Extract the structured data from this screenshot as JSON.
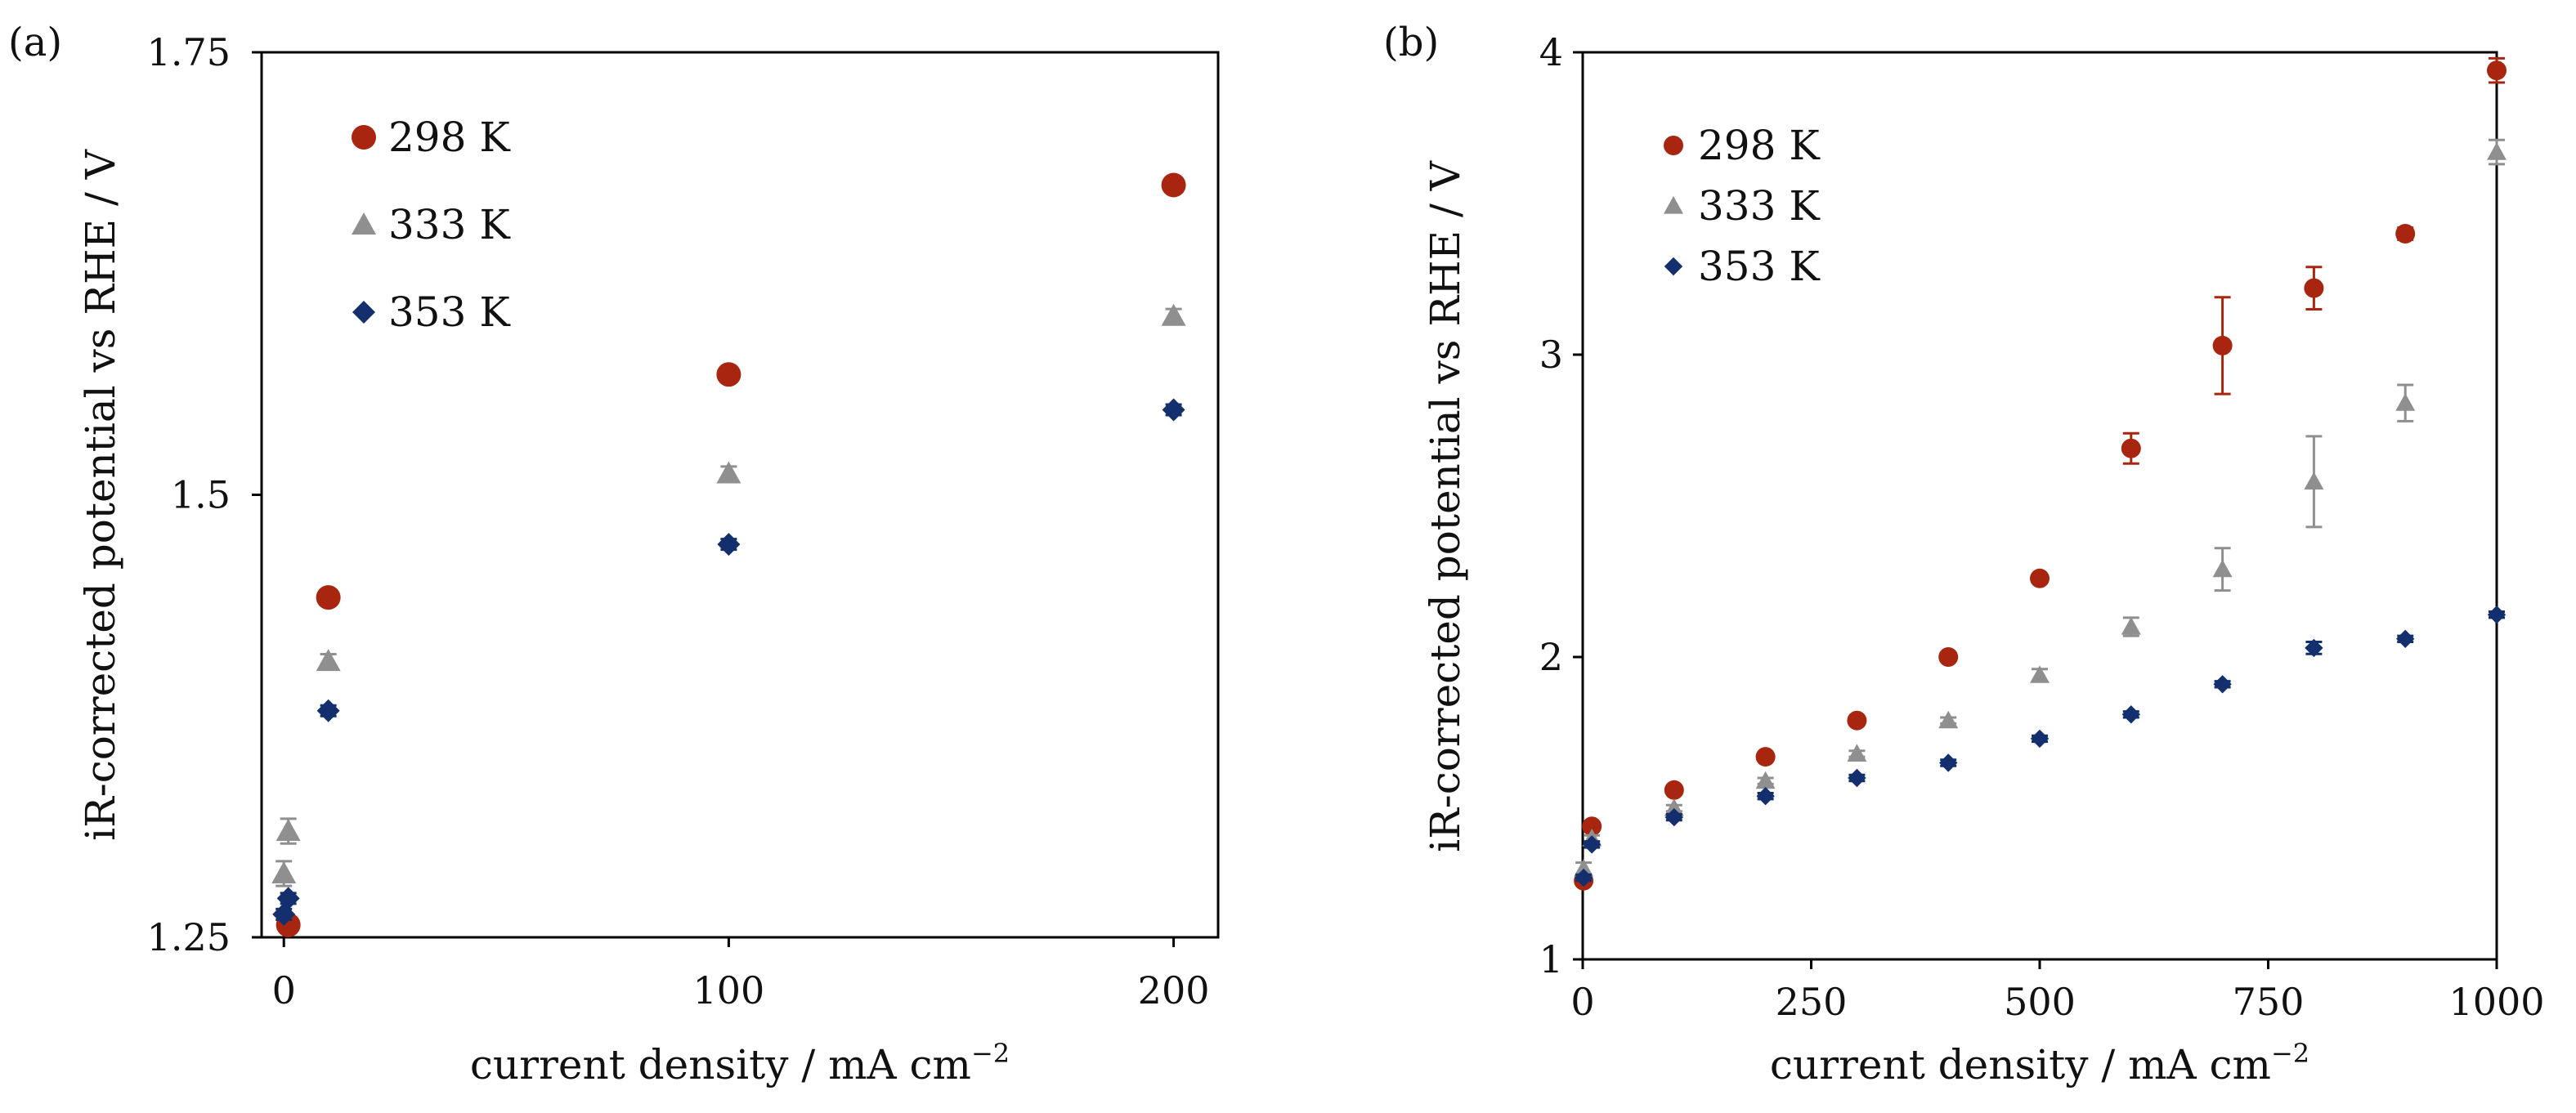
{
  "chart_data": [
    {
      "panel_label": "(a)",
      "type": "scatter",
      "xlabel": "current density / mA cm",
      "xlabel_sup": "−2",
      "ylabel": "iR-corrected potential vs RHE / V",
      "xlim": [
        -5,
        210
      ],
      "ylim": [
        1.25,
        1.75
      ],
      "xticks": [
        0,
        100,
        200
      ],
      "xtick_labels": [
        "0",
        "100",
        "200"
      ],
      "yticks": [
        1.25,
        1.5,
        1.75
      ],
      "ytick_labels": [
        "1.25",
        "1.5",
        "1.75"
      ],
      "grid": false,
      "legend_position": "top-left",
      "series": [
        {
          "name": "298 K",
          "marker": "circle",
          "color": "#a8260f",
          "x": [
            1,
            10,
            100,
            200
          ],
          "y": [
            1.257,
            1.442,
            1.568,
            1.675
          ],
          "err": [
            0.003,
            0.004,
            0.004,
            0.004
          ]
        },
        {
          "name": "333 K",
          "marker": "triangle",
          "color": "#8f8f8f",
          "x": [
            0,
            1,
            10,
            100,
            200
          ],
          "y": [
            1.286,
            1.31,
            1.406,
            1.512,
            1.601
          ],
          "err": [
            0.007,
            0.007,
            0.004,
            0.004,
            0.004
          ]
        },
        {
          "name": "353 K",
          "marker": "diamond",
          "color": "#142f6e",
          "x": [
            0,
            1,
            10,
            100,
            200
          ],
          "y": [
            1.263,
            1.272,
            1.378,
            1.472,
            1.548
          ],
          "err": [
            0.003,
            0.003,
            0.003,
            0.003,
            0.003
          ]
        }
      ]
    },
    {
      "panel_label": "(b)",
      "type": "scatter",
      "xlabel": "current density / mA cm",
      "xlabel_sup": "−2",
      "ylabel": "iR-corrected potential vs RHE / V",
      "xlim": [
        0,
        1000
      ],
      "ylim": [
        1,
        4
      ],
      "xticks": [
        0,
        250,
        500,
        750,
        1000
      ],
      "xtick_labels": [
        "0",
        "250",
        "500",
        "750",
        "1000"
      ],
      "yticks": [
        1,
        2,
        3,
        4
      ],
      "ytick_labels": [
        "1",
        "2",
        "3",
        "4"
      ],
      "grid": false,
      "legend_position": "top-left",
      "series": [
        {
          "name": "298 K",
          "marker": "circle",
          "color": "#a8260f",
          "x": [
            1,
            10,
            100,
            200,
            300,
            400,
            500,
            600,
            700,
            800,
            900,
            1000
          ],
          "y": [
            1.26,
            1.44,
            1.56,
            1.67,
            1.79,
            2.0,
            2.26,
            2.69,
            3.03,
            3.22,
            3.4,
            3.94
          ],
          "err": [
            0.01,
            0.01,
            0.01,
            0.01,
            0.01,
            0.01,
            0.01,
            0.05,
            0.16,
            0.07,
            0.02,
            0.04
          ]
        },
        {
          "name": "333 K",
          "marker": "triangle",
          "color": "#8f8f8f",
          "x": [
            1,
            10,
            100,
            200,
            300,
            400,
            500,
            600,
            700,
            800,
            900,
            1000
          ],
          "y": [
            1.3,
            1.4,
            1.5,
            1.59,
            1.68,
            1.79,
            1.94,
            2.1,
            2.29,
            2.58,
            2.84,
            3.67
          ],
          "err": [
            0.02,
            0.01,
            0.01,
            0.01,
            0.01,
            0.01,
            0.02,
            0.03,
            0.07,
            0.15,
            0.06,
            0.04
          ]
        },
        {
          "name": "353 K",
          "marker": "diamond",
          "color": "#142f6e",
          "x": [
            1,
            10,
            100,
            200,
            300,
            400,
            500,
            600,
            700,
            800,
            900,
            1000
          ],
          "y": [
            1.27,
            1.38,
            1.47,
            1.54,
            1.6,
            1.65,
            1.73,
            1.81,
            1.91,
            2.03,
            2.06,
            2.14
          ],
          "err": [
            0.01,
            0.01,
            0.01,
            0.01,
            0.01,
            0.01,
            0.01,
            0.01,
            0.01,
            0.02,
            0.01,
            0.01
          ]
        }
      ]
    }
  ]
}
